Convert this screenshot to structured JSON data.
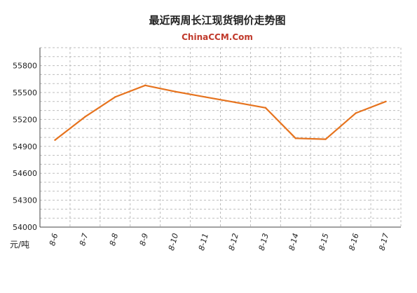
{
  "chart_data": {
    "type": "line",
    "title": "最近两周长江现货铜价走势图",
    "subtitle": "ChinaCCM.Com",
    "ylabel": "元/吨",
    "categories": [
      "8-6",
      "8-7",
      "8-8",
      "8-9",
      "8-10",
      "8-11",
      "8-12",
      "8-13",
      "8-14",
      "8-15",
      "8-16",
      "8-17"
    ],
    "series": [
      {
        "values": [
          54970,
          55230,
          55450,
          55580,
          55510,
          55450,
          55390,
          55330,
          54990,
          54980,
          55270,
          55400
        ]
      }
    ],
    "yticks": [
      54000,
      54300,
      54600,
      54900,
      55200,
      55500,
      55800
    ],
    "ylim": [
      54000,
      56000
    ],
    "grid": true,
    "line_color": "#e6731e"
  }
}
